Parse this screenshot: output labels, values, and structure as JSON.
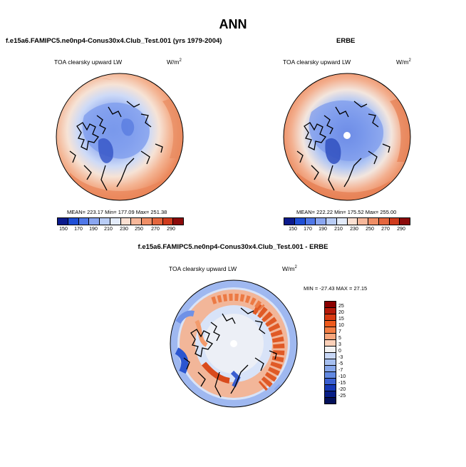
{
  "chart_data": [
    {
      "type": "heatmap",
      "projection": "north-polar-stereographic",
      "title": "f.e15a6.FAMIPC5.ne0np4-Conus30x4.Club_Test.001 (yrs 1979-2004)",
      "variable": "TOA clearsky upward LW",
      "units_base": "W/m",
      "units_exp": "2",
      "stats": "MEAN= 223.17  Min= 177.09  Max= 251.38",
      "mean": 223.17,
      "min": 177.09,
      "max": 251.38,
      "colorbar_levels": [
        150,
        170,
        190,
        210,
        230,
        250,
        270,
        290
      ]
    },
    {
      "type": "heatmap",
      "projection": "north-polar-stereographic",
      "title": "ERBE",
      "variable": "TOA clearsky upward LW",
      "units_base": "W/m",
      "units_exp": "2",
      "stats": "MEAN= 222.22  Min= 175.52  Max= 255.00",
      "mean": 222.22,
      "min": 175.52,
      "max": 255.0,
      "colorbar_levels": [
        150,
        170,
        190,
        210,
        230,
        250,
        270,
        290
      ]
    },
    {
      "type": "heatmap",
      "projection": "north-polar-stereographic",
      "title": "f.e15a6.FAMIPC5.ne0np4-Conus30x4.Club_Test.001 - ERBE",
      "variable": "TOA clearsky upward LW",
      "units_base": "W/m",
      "units_exp": "2",
      "stats": "MIN = -27.43  MAX =  27.15",
      "min": -27.43,
      "max": 27.15,
      "colorbar_levels": [
        25,
        20,
        15,
        10,
        7,
        5,
        3,
        0,
        -3,
        -5,
        -7,
        -10,
        -15,
        -20,
        -25
      ]
    }
  ],
  "page": {
    "title": "ANN"
  },
  "colors": {
    "abs_scale": [
      "#0b1a8c",
      "#1f4fd6",
      "#5078e8",
      "#8aa6f0",
      "#b9cdf6",
      "#e3ebfa",
      "#fbe0d2",
      "#f6b79a",
      "#ef8e66",
      "#e4663e",
      "#cf3b1d",
      "#8c0a0a"
    ],
    "diff_scale": [
      "#8a0000",
      "#b51a0a",
      "#d83a12",
      "#ee5a1c",
      "#f47e44",
      "#f7a67c",
      "#fbd0b8",
      "#f2f2f2",
      "#c8d7f6",
      "#a6bff0",
      "#86a6ea",
      "#6289e2",
      "#3a5fd2",
      "#1638b6",
      "#081e86",
      "#04105a"
    ]
  }
}
